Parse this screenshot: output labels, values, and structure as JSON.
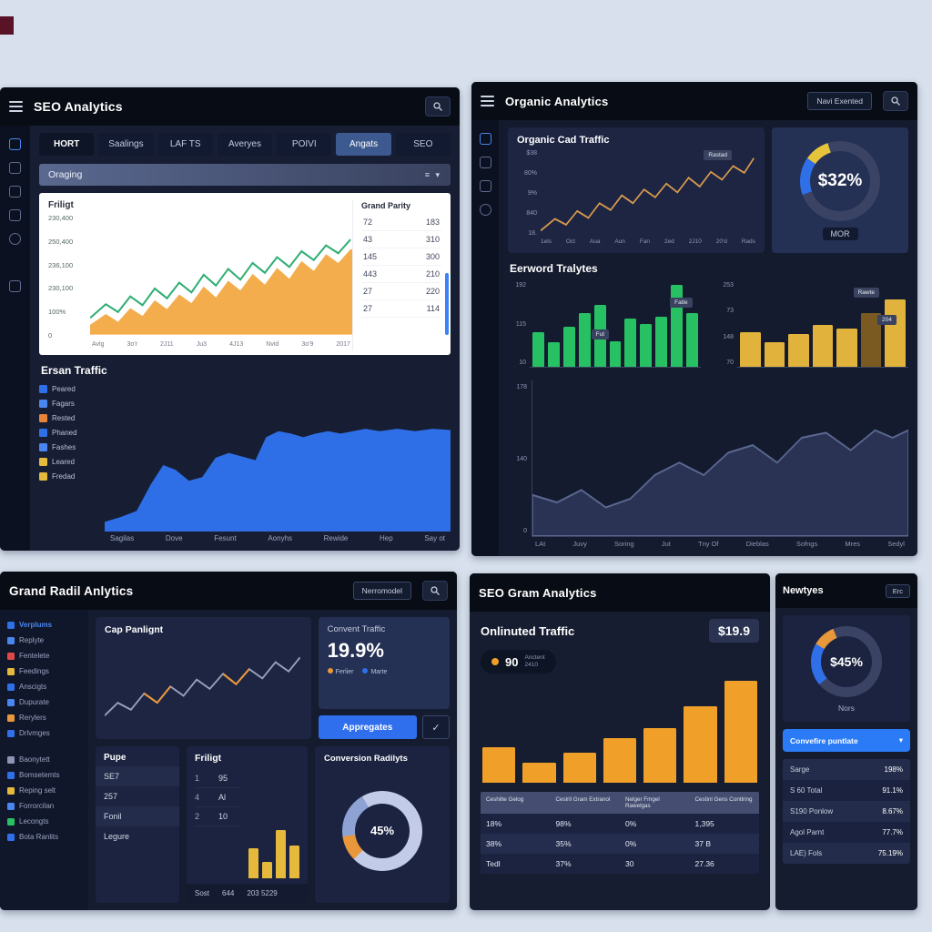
{
  "collage": {
    "background": "#d7e0ec",
    "artifact_color": "#5a1326"
  },
  "seo_panel": {
    "title": "SEO Analytics",
    "tabs": [
      "HORT",
      "Saalings",
      "LAF TS",
      "Averyes",
      "POIVI",
      "Angats",
      "SEO"
    ],
    "dropdown_label": "Oraging",
    "perf_card": {
      "axis_title": "Friligt",
      "y_labels": [
        "230,400",
        "250,400",
        "236,100",
        "230,100",
        "100%",
        "0"
      ],
      "x_labels": [
        "Avlg",
        "3o'r",
        "2J11",
        "Ju3",
        "4J13",
        "Nvid",
        "3o'9",
        "2017"
      ],
      "table_title": "Grand Parity",
      "table_rows": [
        [
          "72",
          "183"
        ],
        [
          "43",
          "310"
        ],
        [
          "145",
          "300"
        ],
        [
          "443",
          "210"
        ],
        [
          "27",
          "220"
        ],
        [
          "27",
          "114"
        ]
      ]
    },
    "traffic_card": {
      "title": "Ersan Traffic",
      "legend": [
        {
          "label": "Peared",
          "color": "#2f6fe8"
        },
        {
          "label": "Fagars",
          "color": "#4a86ef"
        },
        {
          "label": "Rested",
          "color": "#e8833a"
        },
        {
          "label": "Phaned",
          "color": "#2f6fe8"
        },
        {
          "label": "Fashes",
          "color": "#4a86ef"
        },
        {
          "label": "Leared",
          "color": "#e5b93c"
        },
        {
          "label": "Fredad",
          "color": "#e5b93c"
        }
      ],
      "x_labels": [
        "Sagilas",
        "Dove",
        "Fesunt",
        "Aonyhs",
        "Rewide",
        "Hep",
        "Say ot"
      ]
    }
  },
  "organic_panel": {
    "title": "Organic Analytics",
    "header_button": "Navi Exented",
    "line_card": {
      "title": "Organic Cad Traffic",
      "badge": "Rastad",
      "y_labels": [
        "$38",
        "80%",
        "9%",
        "840",
        "18."
      ],
      "x_labels": [
        "1els",
        "Oct",
        "Aua",
        "Aun",
        "Fan",
        "2ed",
        "2J10",
        "20'd",
        "Rads"
      ]
    },
    "gauge_card": {
      "value": "$32%",
      "label": "MOR"
    },
    "keyword_title": "Eerword Tralytes",
    "green_chart": {
      "y_labels": [
        "192",
        "115",
        "10"
      ],
      "bars": {
        "values": [
          40,
          28,
          46,
          62,
          72,
          30,
          56,
          50,
          58,
          95,
          62
        ],
        "color": "#27c163"
      },
      "badges": [
        "Fut",
        "Fatle"
      ]
    },
    "yellow_chart": {
      "y_labels": [
        "253",
        "73",
        "148",
        "70"
      ],
      "bars": {
        "values": [
          40,
          28,
          38,
          48,
          44,
          62,
          78
        ],
        "color": "#e2b33c",
        "colors": {
          "5": "#7a5a20"
        }
      },
      "badges": [
        "Rawte",
        "204"
      ]
    },
    "area_chart": {
      "y_labels": [
        "178",
        "140",
        "0"
      ],
      "x_labels": [
        "LAt",
        "Juvy",
        "Soring",
        "Jut",
        "Tny Of",
        "Dieblas",
        "Sofngs",
        "Mres",
        "Sedyl"
      ]
    }
  },
  "grand_panel": {
    "title": "Grand Radil Anlytics",
    "header_button": "Nerromodel",
    "sidebar_items": [
      {
        "label": "Verplums",
        "color": "#2f6fe8"
      },
      {
        "label": "Replyte",
        "color": "#4a86ef"
      },
      {
        "label": "Fentelete",
        "color": "#e04848"
      },
      {
        "label": "Feedings",
        "color": "#e5b93c"
      },
      {
        "label": "Anscigts",
        "color": "#2f6fe8"
      },
      {
        "label": "Dupurate",
        "color": "#4a86ef"
      },
      {
        "label": "Rerylers",
        "color": "#e8973a"
      },
      {
        "label": "Drlvmges",
        "color": "#2f6fe8"
      },
      {
        "label": "Baonytett",
        "color": "#8d97b5"
      },
      {
        "label": "Bomsetemts",
        "color": "#2f6fe8"
      },
      {
        "label": "Reping selt",
        "color": "#e5b93c"
      },
      {
        "label": "Forrorcilan",
        "color": "#4a86ef"
      },
      {
        "label": "Lecongts",
        "color": "#27c163"
      },
      {
        "label": "Bota Ranlits",
        "color": "#2f6fe8"
      }
    ],
    "line_card": {
      "title": "Cap Panlignt"
    },
    "convert_card": {
      "title": "Convent Traffic",
      "value": "19.9%",
      "legend": [
        {
          "label": "Ferlier",
          "color": "#e8973a"
        },
        {
          "label": "Marte",
          "color": "#2f6fe8"
        }
      ],
      "button_label": "Appregates"
    },
    "pupe_card": {
      "title": "Pupe",
      "rows": [
        "SE7",
        "257",
        "Fonil",
        "Legure"
      ]
    },
    "friligt_card": {
      "title": "Friligt",
      "rows": [
        [
          "1",
          "95"
        ],
        [
          "4",
          "Al"
        ],
        [
          "2",
          "10"
        ]
      ],
      "footer": [
        "Sost",
        "644",
        "203 5229"
      ],
      "bars": {
        "values": [
          55,
          30,
          88,
          60
        ],
        "color": "#e5b93c"
      }
    },
    "donut_card": {
      "title": "Conversion Radilyts",
      "value": "45%"
    }
  },
  "gram_panel": {
    "title": "SEO Gram Analytics",
    "traffic_title": "Onlinuted Traffic",
    "traffic_value": "$19.9",
    "pill": {
      "value": "90",
      "sub_top": "Anctent",
      "sub_bottom": "2410"
    },
    "bars": {
      "values": [
        35,
        20,
        30,
        44,
        54,
        75,
        100
      ],
      "color": "#f0a028"
    },
    "table": {
      "headers": [
        "Ceshilte Gelog",
        "Ceslril Gram Extranol",
        "Nelger Fmgel Rawelgas",
        "Cestinl Gens Contlring"
      ],
      "rows": [
        [
          "18%",
          "98%",
          "0%",
          "1,395"
        ],
        [
          "38%",
          "35%",
          "0%",
          "37 B"
        ],
        [
          "Tedl",
          "37%",
          "30",
          "27.36"
        ]
      ]
    }
  },
  "newtyes_panel": {
    "title": "Newtyes",
    "header_button": "Erc",
    "gauge": {
      "value": "$45%",
      "label": "Nors"
    },
    "dropdown_label": "Convefire puntlate",
    "rows": [
      [
        "Sarge",
        "198%"
      ],
      [
        "S 60 Total",
        "91.1%"
      ],
      [
        "S190 Ponlow",
        "8.67%"
      ],
      [
        "Agol Parnt",
        "77.7%"
      ],
      [
        "LAE) Fols",
        "75.19%"
      ]
    ]
  }
}
